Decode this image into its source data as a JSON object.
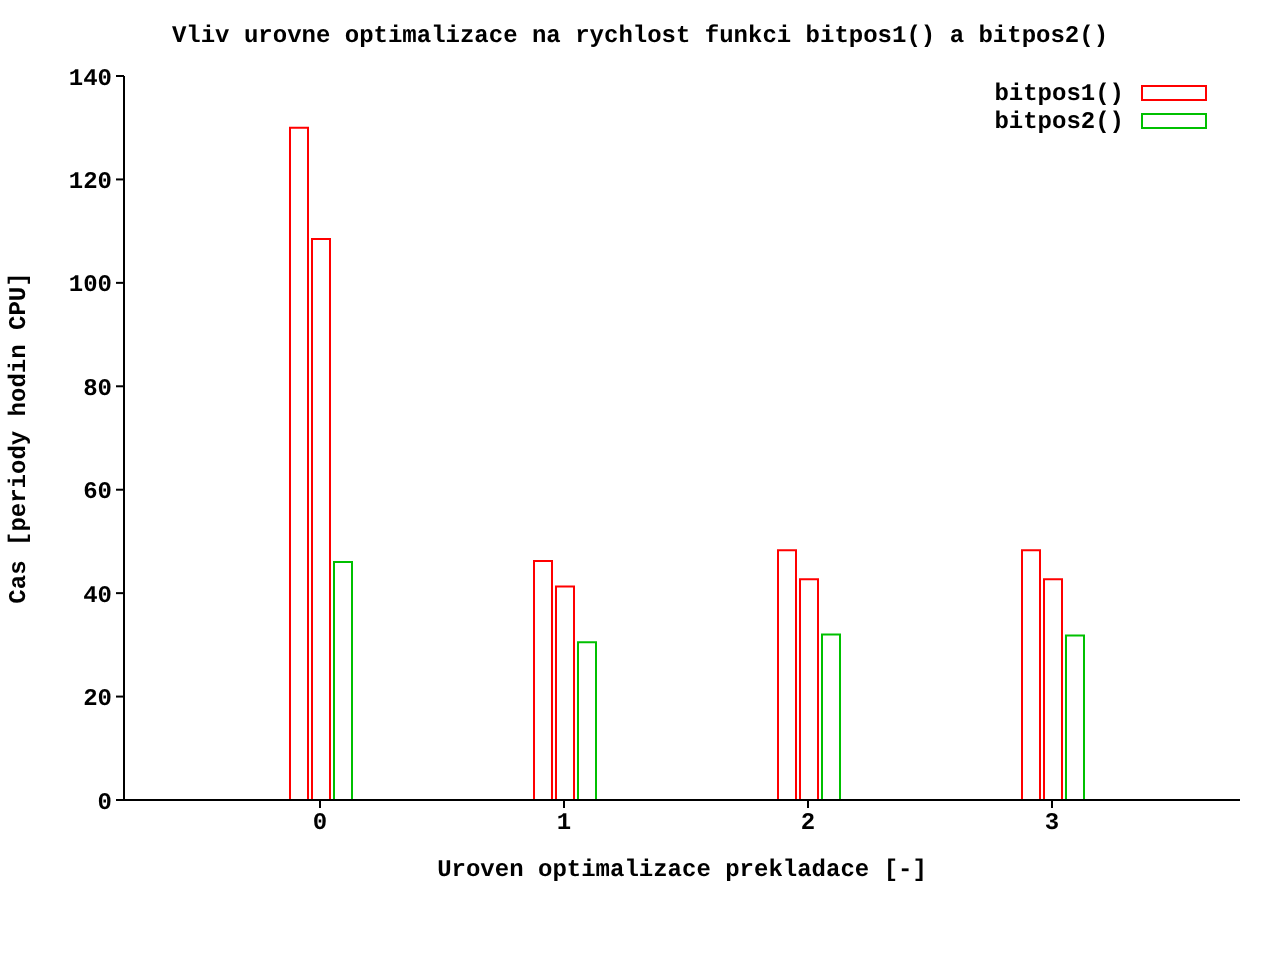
{
  "chart_data": {
    "type": "bar",
    "title": "Vliv urovne optimalizace na rychlost funkci bitpos1() a bitpos2()",
    "xlabel": "Uroven optimalizace prekladace [-]",
    "ylabel": "Cas [periody hodin CPU]",
    "categories": [
      "0",
      "1",
      "2",
      "3"
    ],
    "series": [
      {
        "name": "bitpos1()",
        "color": "#ff0000",
        "values": [
          130,
          46.2,
          48.3,
          48.3
        ]
      },
      {
        "color": "#ff0000",
        "values": [
          108.5,
          41.3,
          42.7,
          42.7
        ]
      },
      {
        "name": "bitpos2()",
        "color": "#00c000",
        "values": [
          46,
          30.5,
          32,
          31.8
        ]
      }
    ],
    "ylim": [
      0,
      140
    ],
    "yticks": [
      0,
      20,
      40,
      60,
      80,
      100,
      120,
      140
    ],
    "legend": "top right",
    "grid": false
  }
}
